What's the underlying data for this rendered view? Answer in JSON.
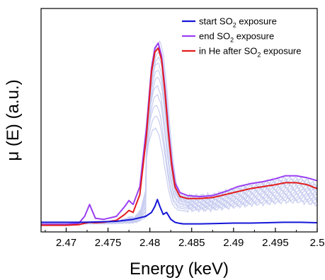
{
  "chart_data": {
    "type": "line",
    "xlabel": "Energy (keV)",
    "ylabel": "μ (E) (a.u.)",
    "xlim": [
      2.467,
      2.5
    ],
    "ylim": [
      0,
      1.0
    ],
    "x_ticks": [
      "2.47",
      "2.475",
      "2.48",
      "2.485",
      "2.49",
      "2.495",
      "2.5"
    ],
    "x_tick_values": [
      2.47,
      2.475,
      2.48,
      2.485,
      2.49,
      2.495,
      2.5
    ],
    "y_ticks_visible": false,
    "grid": false,
    "legend_position": "top-right",
    "legend": [
      {
        "label": "start SO",
        "sub": "2",
        "suffix": " exposure",
        "color": "#1515d8"
      },
      {
        "label": "end SO",
        "sub": "2",
        "suffix": " exposure",
        "color": "#9b3ff2"
      },
      {
        "label": "in He after SO",
        "sub": "2",
        "suffix": " exposure",
        "color": "#e41b1b"
      }
    ],
    "background_series_color": "#c8cdf0",
    "background_series": [
      {
        "scale": 0.55,
        "post": 0.07,
        "pre": 0.06,
        "wl": 2.4807
      },
      {
        "scale": 0.62,
        "post": 0.09,
        "pre": 0.09,
        "wl": 2.4808
      },
      {
        "scale": 0.68,
        "post": 0.11,
        "pre": 0.12,
        "wl": 2.4808
      },
      {
        "scale": 0.74,
        "post": 0.13,
        "pre": 0.15,
        "wl": 2.4809
      },
      {
        "scale": 0.79,
        "post": 0.15,
        "pre": 0.18,
        "wl": 2.4809
      },
      {
        "scale": 0.84,
        "post": 0.17,
        "pre": 0.22,
        "wl": 2.481
      },
      {
        "scale": 0.88,
        "post": 0.19,
        "pre": 0.26,
        "wl": 2.481
      },
      {
        "scale": 0.92,
        "post": 0.21,
        "pre": 0.3,
        "wl": 2.481
      },
      {
        "scale": 0.95,
        "post": 0.23,
        "pre": 0.35,
        "wl": 2.4811
      },
      {
        "scale": 0.98,
        "post": 0.25,
        "pre": 0.4,
        "wl": 2.4811
      },
      {
        "scale": 1.01,
        "post": 0.27,
        "pre": 0.45,
        "wl": 2.4811
      },
      {
        "scale": 1.04,
        "post": 0.29,
        "pre": 0.5,
        "wl": 2.4812
      }
    ],
    "series": [
      {
        "color": "#1515d8",
        "x": [
          2.467,
          2.47,
          2.472,
          2.474,
          2.476,
          2.478,
          2.4795,
          2.4802,
          2.4806,
          2.4809,
          2.4812,
          2.4816,
          2.482,
          2.4825,
          2.483,
          2.4835,
          2.484,
          2.486,
          2.488,
          2.49,
          2.492,
          2.494,
          2.496,
          2.498,
          2.5
        ],
        "y": [
          0.02,
          0.02,
          0.02,
          0.022,
          0.025,
          0.035,
          0.05,
          0.07,
          0.1,
          0.135,
          0.1,
          0.06,
          0.07,
          0.035,
          0.02,
          0.015,
          0.012,
          0.012,
          0.014,
          0.016,
          0.016,
          0.018,
          0.02,
          0.02,
          0.018
        ]
      },
      {
        "color": "#9b3ff2",
        "x": [
          2.467,
          2.47,
          2.4715,
          2.4722,
          2.4728,
          2.4735,
          2.4745,
          2.476,
          2.477,
          2.4775,
          2.478,
          2.4788,
          2.4796,
          2.4802,
          2.4806,
          2.481,
          2.4814,
          2.4818,
          2.4822,
          2.4826,
          2.483,
          2.4836,
          2.4845,
          2.486,
          2.4875,
          2.489,
          2.4905,
          2.492,
          2.4935,
          2.495,
          2.4962,
          2.4975,
          2.4988,
          2.5
        ],
        "y": [
          0.01,
          0.01,
          0.015,
          0.05,
          0.11,
          0.04,
          0.035,
          0.05,
          0.1,
          0.13,
          0.11,
          0.2,
          0.5,
          0.8,
          0.9,
          0.925,
          0.86,
          0.7,
          0.5,
          0.33,
          0.22,
          0.17,
          0.155,
          0.15,
          0.155,
          0.175,
          0.2,
          0.215,
          0.225,
          0.24,
          0.255,
          0.255,
          0.245,
          0.23
        ]
      },
      {
        "color": "#e41b1b",
        "x": [
          2.467,
          2.47,
          2.4715,
          2.4722,
          2.4728,
          2.4735,
          2.4745,
          2.476,
          2.477,
          2.4775,
          2.478,
          2.4788,
          2.4796,
          2.4802,
          2.4806,
          2.481,
          2.4814,
          2.4818,
          2.4822,
          2.4826,
          2.483,
          2.4836,
          2.4845,
          2.486,
          2.4875,
          2.489,
          2.4905,
          2.492,
          2.4935,
          2.495,
          2.4962,
          2.4975,
          2.4988,
          2.5
        ],
        "y": [
          0.005,
          0.005,
          0.008,
          0.015,
          0.02,
          0.018,
          0.02,
          0.03,
          0.06,
          0.08,
          0.07,
          0.16,
          0.46,
          0.78,
          0.88,
          0.9,
          0.84,
          0.68,
          0.48,
          0.31,
          0.2,
          0.15,
          0.14,
          0.14,
          0.145,
          0.16,
          0.175,
          0.19,
          0.2,
          0.21,
          0.22,
          0.22,
          0.21,
          0.19
        ]
      }
    ]
  }
}
